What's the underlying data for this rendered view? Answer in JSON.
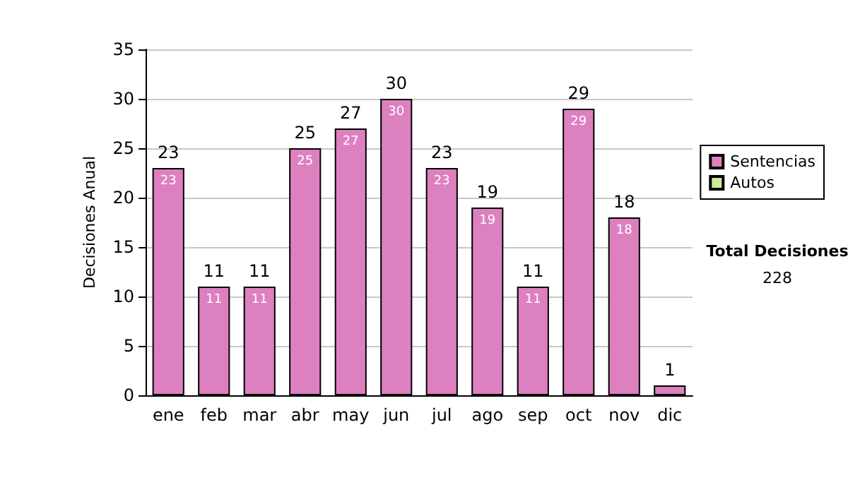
{
  "chart_data": {
    "type": "bar",
    "ylabel": "Decisiones Anual",
    "categories": [
      "ene",
      "feb",
      "mar",
      "abr",
      "may",
      "jun",
      "jul",
      "ago",
      "sep",
      "oct",
      "nov",
      "dic"
    ],
    "stacked": true,
    "series": [
      {
        "name": "Sentencias",
        "color": "#dd80c0",
        "values": [
          23,
          11,
          11,
          25,
          27,
          30,
          23,
          19,
          11,
          29,
          18,
          1
        ],
        "value_labels": [
          "23",
          "11",
          "11",
          "25",
          "27",
          "30",
          "23",
          "19",
          "11",
          "29",
          "18",
          null
        ]
      },
      {
        "name": "Autos",
        "color": "#ccee99",
        "values": [
          0,
          0,
          0,
          0,
          0,
          0,
          0,
          0,
          0,
          0,
          0,
          0
        ]
      }
    ],
    "totals": [
      "23",
      "11",
      "11",
      "25",
      "27",
      "30",
      "23",
      "19",
      "11",
      "29",
      "18",
      "1"
    ],
    "ylim": [
      0,
      35
    ],
    "yticks": [
      0,
      5,
      10,
      15,
      20,
      25,
      30,
      35
    ],
    "grid": "y",
    "legend": "right",
    "annotations": [
      "Total Decisiones",
      "228"
    ]
  }
}
